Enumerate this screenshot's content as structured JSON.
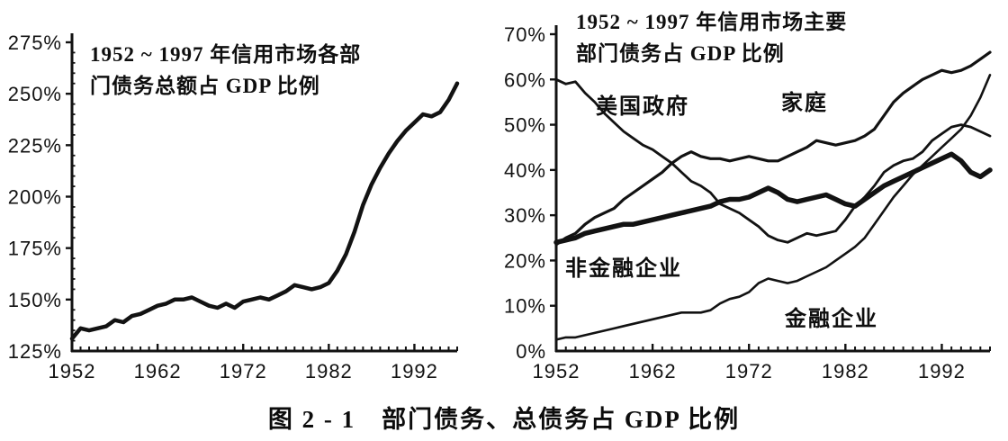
{
  "figure": {
    "caption": "图 2 - 1　部门债务、总债务占 GDP 比例"
  },
  "colors": {
    "ink": "#121212",
    "paper": "#ffffff"
  },
  "chart_data": [
    {
      "id": "total-debt-chart",
      "type": "line",
      "title_line1": "1952 ~ 1997 年信用市场各部",
      "title_line2": "门债务总额占 GDP 比例",
      "xlabel": "",
      "ylabel": "",
      "x_start": 1952,
      "x_end": 1997,
      "x_tick_years": [
        1952,
        1962,
        1972,
        1982,
        1992
      ],
      "x_tick_labels": [
        "1952",
        "1962",
        "1972",
        "1982",
        "1992"
      ],
      "y_tick_labels": [
        "275%",
        "250%",
        "225%",
        "200%",
        "175%",
        "150%",
        "125%"
      ],
      "ylim": [
        125,
        275
      ],
      "grid": false,
      "legend_position": "none",
      "series": [
        {
          "name": "信用市场各部门债务总额占GDP比例",
          "values": [
            131,
            136,
            135,
            136,
            137,
            140,
            139,
            142,
            143,
            145,
            147,
            148,
            150,
            150,
            151,
            149,
            147,
            146,
            148,
            146,
            149,
            150,
            151,
            150,
            152,
            154,
            157,
            156,
            155,
            156,
            158,
            164,
            172,
            183,
            196,
            206,
            214,
            221,
            227,
            232,
            236,
            240,
            239,
            241,
            247,
            255
          ]
        }
      ]
    },
    {
      "id": "sector-debt-chart",
      "type": "line",
      "title_line1": "1952 ~ 1997 年信用市场主要",
      "title_line2": "部门债务占 GDP 比例",
      "xlabel": "",
      "ylabel": "",
      "x_start": 1952,
      "x_end": 1997,
      "x_tick_years": [
        1952,
        1962,
        1972,
        1982,
        1992
      ],
      "x_tick_labels": [
        "1952",
        "1962",
        "1972",
        "1982",
        "1992"
      ],
      "y_tick_labels": [
        "70%",
        "60%",
        "50%",
        "40%",
        "30%",
        "20%",
        "10%",
        "0%"
      ],
      "ylim": [
        0,
        70
      ],
      "grid": false,
      "legend_position": "inline-annotations",
      "series": [
        {
          "name": "美国政府",
          "values": [
            60,
            59,
            59.5,
            57,
            55,
            52.5,
            50.5,
            48.5,
            47,
            45.5,
            44.5,
            43,
            41.5,
            39.5,
            37.5,
            36.5,
            35,
            32.5,
            31.5,
            30.5,
            29,
            27.5,
            25.5,
            24.5,
            24,
            25,
            26,
            25.5,
            26,
            26.5,
            29,
            32,
            34,
            36.5,
            39.5,
            41,
            42,
            42.5,
            44,
            46.5,
            48,
            49.5,
            50,
            49.5,
            48.5,
            47.5
          ]
        },
        {
          "name": "家庭",
          "values": [
            23.5,
            25,
            26,
            28,
            29.5,
            30.5,
            31.5,
            33.5,
            35,
            36.5,
            38,
            39.5,
            41.5,
            43,
            44,
            43,
            42.5,
            42.5,
            42,
            42.5,
            43,
            42.5,
            42,
            42,
            43,
            44,
            45,
            46.5,
            46,
            45.5,
            46,
            46.5,
            47.5,
            49,
            52,
            55,
            57,
            58.5,
            60,
            61,
            62,
            61.5,
            62,
            63,
            64.5,
            66
          ]
        },
        {
          "name": "非金融企业",
          "values": [
            24,
            24.5,
            25,
            26,
            26.5,
            27,
            27.5,
            28,
            28,
            28.5,
            29,
            29.5,
            30,
            30.5,
            31,
            31.5,
            32,
            33,
            33.5,
            33.5,
            34,
            35,
            36,
            35,
            33.5,
            33,
            33.5,
            34,
            34.5,
            33.5,
            32.5,
            32,
            33.5,
            35,
            36.5,
            37.5,
            38.5,
            39.5,
            40.5,
            41.5,
            42.5,
            43.5,
            42,
            39.5,
            38.5,
            40
          ]
        },
        {
          "name": "金融企业",
          "values": [
            2.5,
            3,
            3,
            3.5,
            4,
            4.5,
            5,
            5.5,
            6,
            6.5,
            7,
            7.5,
            8,
            8.5,
            8.5,
            8.5,
            9,
            10.5,
            11.5,
            12,
            13,
            15,
            16,
            15.5,
            15,
            15.5,
            16.5,
            17.5,
            18.5,
            20,
            21.5,
            23,
            25,
            28,
            31,
            34,
            36.5,
            39,
            41,
            43,
            45,
            47,
            49,
            52,
            56,
            61
          ]
        }
      ]
    }
  ]
}
